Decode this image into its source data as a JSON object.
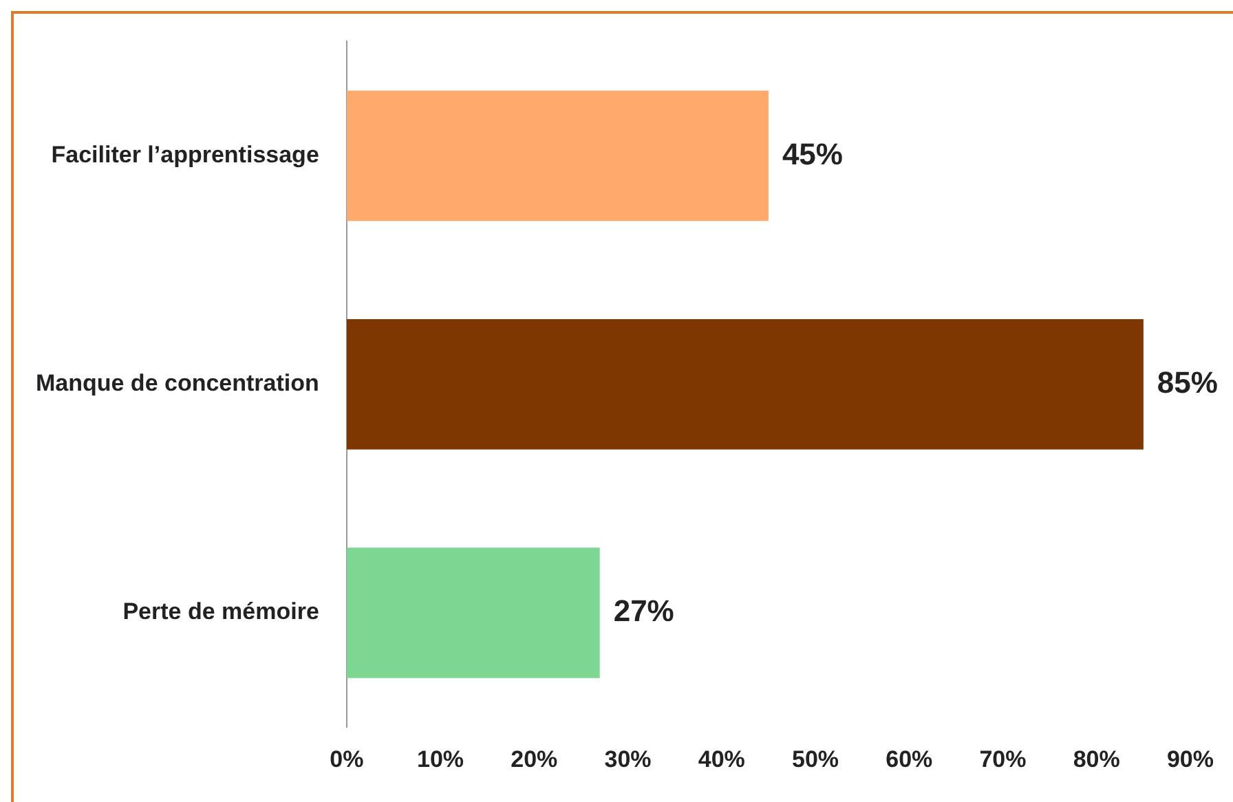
{
  "chart_data": {
    "type": "bar",
    "orientation": "horizontal",
    "categories": [
      "Faciliter l’apprentissage",
      "Manque de concentration",
      "Perte de mémoire"
    ],
    "values": [
      45,
      85,
      27
    ],
    "colors": [
      "#ffa96c",
      "#7f3700",
      "#7dd793"
    ],
    "value_labels": [
      "45%",
      "85%",
      "27%"
    ],
    "xlim": [
      0,
      90
    ],
    "xticks": [
      {
        "value": 0,
        "label": "0%"
      },
      {
        "value": 10,
        "label": "10%"
      },
      {
        "value": 20,
        "label": "20%"
      },
      {
        "value": 30,
        "label": "30%"
      },
      {
        "value": 40,
        "label": "40%"
      },
      {
        "value": 50,
        "label": "50%"
      },
      {
        "value": 60,
        "label": "60%"
      },
      {
        "value": 70,
        "label": "70%"
      },
      {
        "value": 80,
        "label": "80%"
      },
      {
        "value": 90,
        "label": "90%"
      }
    ],
    "grid": false,
    "legend": false
  }
}
